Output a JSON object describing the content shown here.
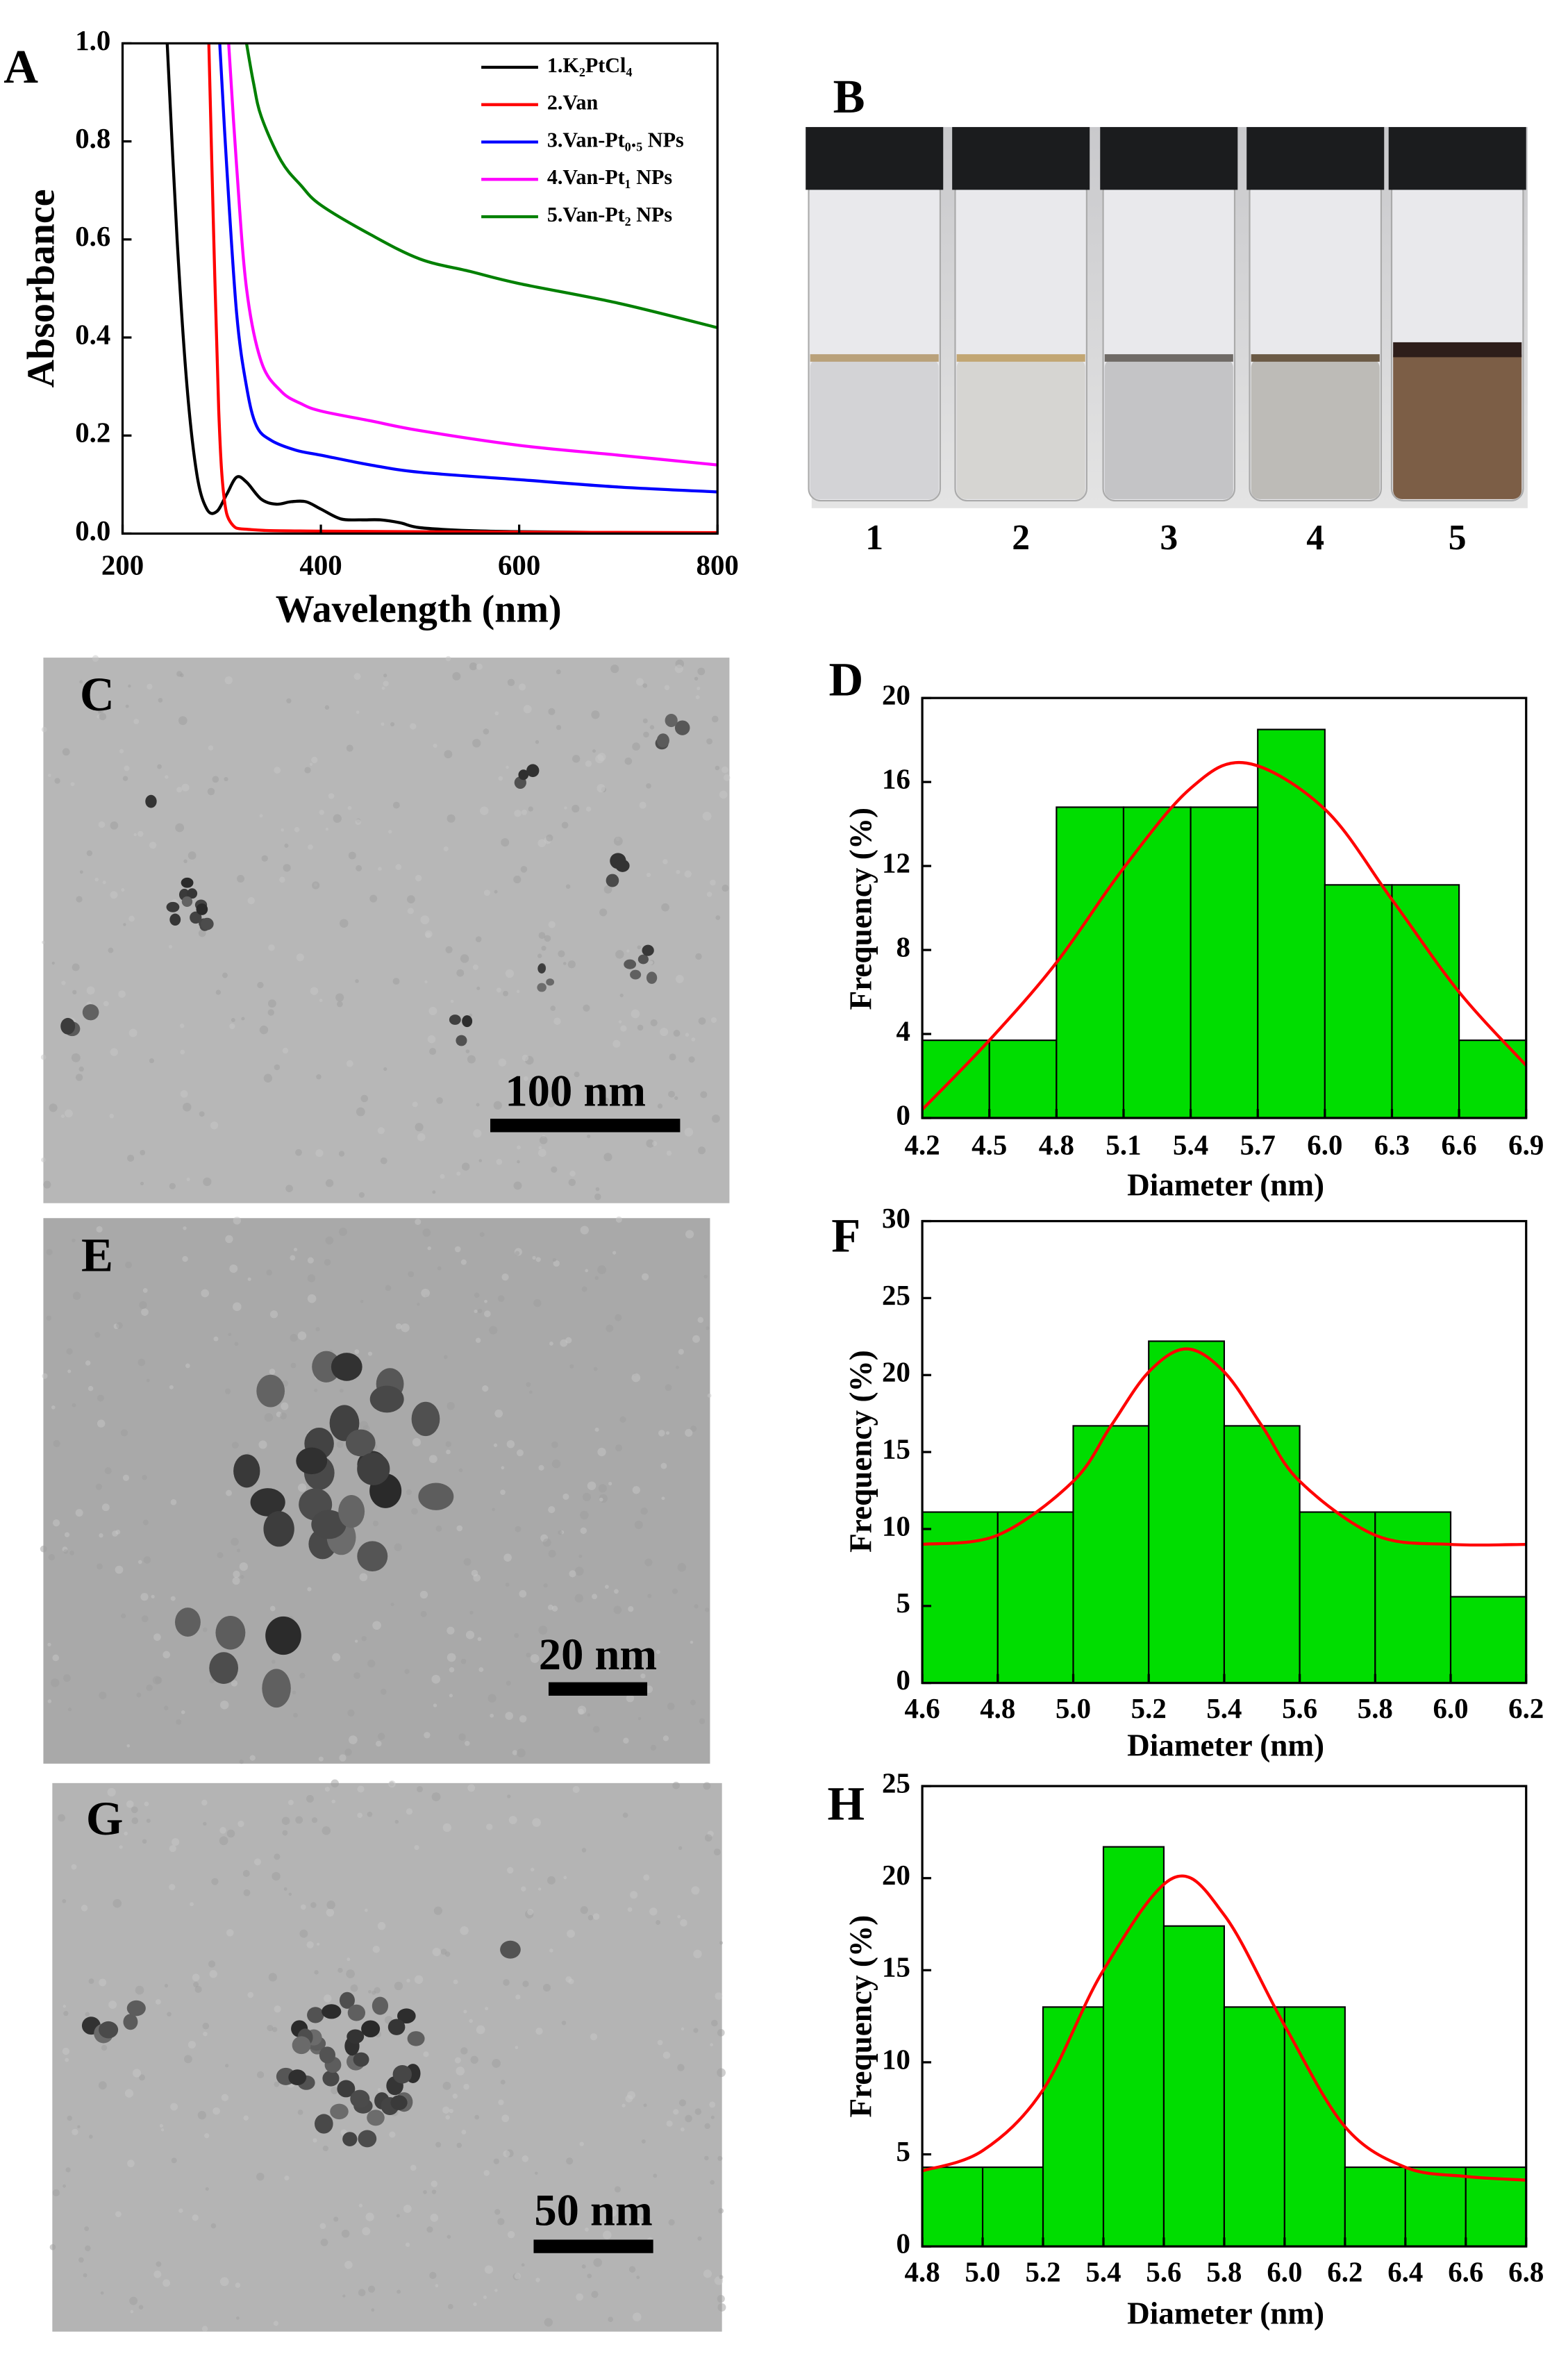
{
  "chart_data": [
    {
      "type": "line",
      "label": "A",
      "xlabel": "Wavelength (nm)",
      "ylabel": "Absorbance",
      "xlim": [
        200,
        800
      ],
      "ylim": [
        0,
        1
      ],
      "xticks": [
        200,
        400,
        600,
        800
      ],
      "yticks": [
        {
          "value": 0,
          "label": "0.0"
        },
        0.2,
        0.4,
        0.6,
        0.8,
        {
          "value": 1,
          "label": "1.0"
        }
      ],
      "legend": "upper right",
      "series": [
        {
          "name": "1.K₂PtCl₄",
          "color": "#000000",
          "x": [
            245,
            255,
            265,
            275,
            285,
            295,
            305,
            315,
            325,
            340,
            355,
            370,
            385,
            400,
            420,
            440,
            460,
            480,
            500,
            550,
            600,
            700,
            800
          ],
          "values": [
            1.0,
            0.6,
            0.3,
            0.12,
            0.05,
            0.045,
            0.08,
            0.115,
            0.105,
            0.07,
            0.06,
            0.065,
            0.065,
            0.05,
            0.03,
            0.028,
            0.028,
            0.022,
            0.012,
            0.006,
            0.004,
            0.002,
            0.001
          ]
        },
        {
          "name": "2.Van",
          "color": "#ff0000",
          "x": [
            287,
            292,
            297,
            302,
            310,
            330,
            400,
            600,
            800
          ],
          "values": [
            1.0,
            0.6,
            0.25,
            0.08,
            0.02,
            0.008,
            0.005,
            0.003,
            0.002
          ]
        },
        {
          "name": "3.Van-Pt₀.₅ NPs",
          "color": "#0000ff",
          "x": [
            298,
            305,
            315,
            325,
            335,
            350,
            375,
            400,
            450,
            500,
            600,
            700,
            800
          ],
          "values": [
            1.0,
            0.75,
            0.45,
            0.3,
            0.22,
            0.19,
            0.17,
            0.16,
            0.14,
            0.125,
            0.11,
            0.095,
            0.085
          ]
        },
        {
          "name": "4.Van-Pt₁ NPs",
          "color": "#ff00ff",
          "x": [
            307,
            315,
            325,
            340,
            360,
            380,
            400,
            450,
            500,
            600,
            700,
            800
          ],
          "values": [
            1.0,
            0.75,
            0.5,
            0.35,
            0.29,
            0.265,
            0.25,
            0.23,
            0.21,
            0.18,
            0.16,
            0.14
          ]
        },
        {
          "name": "5.Van-Pt₂ NPs",
          "color": "#008000",
          "x": [
            325,
            332,
            340,
            360,
            380,
            400,
            450,
            500,
            550,
            600,
            700,
            800
          ],
          "values": [
            1.0,
            0.92,
            0.85,
            0.76,
            0.71,
            0.67,
            0.61,
            0.56,
            0.535,
            0.51,
            0.47,
            0.42
          ]
        }
      ]
    },
    {
      "type": "histogram",
      "label": "D",
      "xlabel": "Diameter (nm)",
      "ylabel": "Frequency (%)",
      "xlim": [
        4.2,
        6.9
      ],
      "ylim": [
        0,
        20
      ],
      "xticks": [
        4.2,
        4.5,
        4.8,
        5.1,
        5.4,
        5.7,
        {
          "value": 6,
          "label": "6.0"
        },
        6.3,
        6.6,
        6.9
      ],
      "yticks": [
        0,
        4,
        8,
        12,
        16,
        20
      ],
      "bins": [
        4.2,
        4.5,
        4.8,
        5.1,
        5.4,
        5.7,
        6.0,
        6.3,
        6.6,
        6.9
      ],
      "counts": [
        3.7,
        3.7,
        14.8,
        14.8,
        14.8,
        18.5,
        11.1,
        11.1,
        3.7
      ],
      "color": "#00dd00",
      "fit": {
        "color": "#ff0000",
        "x": [
          4.2,
          4.5,
          4.8,
          5.1,
          5.4,
          5.65,
          6.0,
          6.3,
          6.6,
          6.9
        ],
        "values": [
          0.4,
          3.7,
          7.4,
          11.9,
          15.7,
          16.9,
          14.7,
          10.4,
          6.0,
          2.5
        ]
      }
    },
    {
      "type": "histogram",
      "label": "F",
      "xlabel": "Diameter (nm)",
      "ylabel": "Frequency (%)",
      "xlim": [
        4.6,
        6.2
      ],
      "ylim": [
        0,
        30
      ],
      "xticks": [
        4.6,
        4.8,
        {
          "value": 5,
          "label": "5.0"
        },
        5.2,
        5.4,
        5.6,
        5.8,
        {
          "value": 6,
          "label": "6.0"
        },
        6.2
      ],
      "yticks": [
        0,
        5,
        10,
        15,
        20,
        25,
        30
      ],
      "bins": [
        4.6,
        4.8,
        5.0,
        5.2,
        5.4,
        5.6,
        5.8,
        6.0,
        6.2
      ],
      "counts": [
        11.1,
        11.1,
        16.7,
        22.2,
        16.7,
        11.1,
        11.1,
        5.6
      ],
      "color": "#00dd00",
      "fit": {
        "color": "#ff0000",
        "x": [
          4.6,
          4.8,
          5.0,
          5.1,
          5.2,
          5.3,
          5.4,
          5.5,
          5.6,
          5.8,
          6.0,
          6.2
        ],
        "values": [
          9.0,
          9.6,
          13.1,
          16.7,
          20.2,
          21.7,
          20.2,
          16.7,
          13.1,
          9.6,
          9.0,
          9.0
        ]
      }
    },
    {
      "type": "histogram",
      "label": "H",
      "xlabel": "Diameter (nm)",
      "ylabel": "Frequency (%)",
      "xlim": [
        4.8,
        6.8
      ],
      "ylim": [
        0,
        25
      ],
      "xticks": [
        4.8,
        {
          "value": 5,
          "label": "5.0"
        },
        5.2,
        5.4,
        5.6,
        5.8,
        {
          "value": 6,
          "label": "6.0"
        },
        6.2,
        6.4,
        6.6,
        6.8
      ],
      "yticks": [
        0,
        5,
        10,
        15,
        20,
        25
      ],
      "bins": [
        4.8,
        5.0,
        5.2,
        5.4,
        5.6,
        5.8,
        6.0,
        6.2,
        6.4,
        6.6,
        6.8
      ],
      "counts": [
        4.3,
        4.3,
        13.0,
        21.7,
        17.4,
        13.0,
        13.0,
        4.3,
        4.3,
        4.3
      ],
      "color": "#00dd00",
      "fit": {
        "color": "#ff0000",
        "x": [
          4.8,
          5.0,
          5.2,
          5.4,
          5.63,
          5.8,
          6.0,
          6.2,
          6.4,
          6.6,
          6.8
        ],
        "values": [
          4.1,
          5.2,
          8.5,
          15.0,
          20.0,
          18.0,
          12.0,
          6.5,
          4.3,
          3.8,
          3.6
        ]
      }
    }
  ],
  "photos": [
    {
      "label": "B",
      "captions": [
        "1",
        "2",
        "3",
        "4",
        "5"
      ]
    },
    {
      "label": "C",
      "scale_bar": "100 nm"
    },
    {
      "label": "E",
      "scale_bar": "20 nm"
    },
    {
      "label": "G",
      "scale_bar": "50 nm"
    }
  ]
}
